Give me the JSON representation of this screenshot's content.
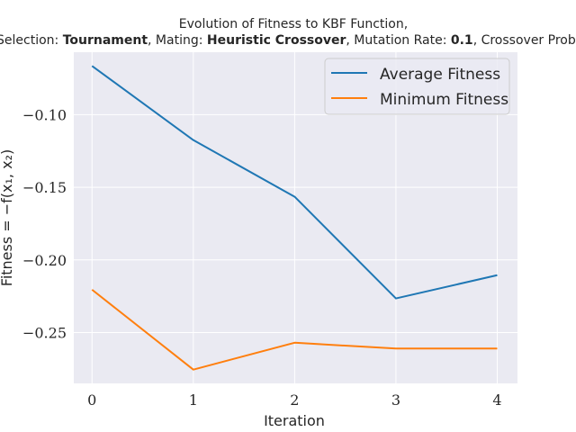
{
  "chart_data": {
    "type": "line",
    "title_line1": "Evolution of Fitness to KBF Function,",
    "title_line2": {
      "p1": "Selection: ",
      "b1": "Tournament",
      "p2": ", Mating: ",
      "b2": "Heuristic Crossover",
      "p3": ", Mutation Rate: ",
      "b3": "0.1",
      "p4": ", Crossover Prob:"
    },
    "xlabel": "Iteration",
    "ylabel": "Fitness = −f(x₁, x₂)",
    "x": [
      0,
      1,
      2,
      3,
      4
    ],
    "xticks": [
      "0",
      "1",
      "2",
      "3",
      "4"
    ],
    "yticks": [
      {
        "value": -0.1,
        "label": "−0.10"
      },
      {
        "value": -0.15,
        "label": "−0.15"
      },
      {
        "value": -0.2,
        "label": "−0.20"
      },
      {
        "value": -0.25,
        "label": "−0.25"
      }
    ],
    "xlim": [
      -0.18,
      4.2
    ],
    "ylim": [
      -0.285,
      -0.057
    ],
    "grid": true,
    "legend_position": "top-right",
    "series": [
      {
        "name": "Average Fitness",
        "color": "#1f77b4",
        "values": [
          -0.0665,
          -0.1175,
          -0.1565,
          -0.2265,
          -0.2105
        ]
      },
      {
        "name": "Minimum Fitness",
        "color": "#ff7f0e",
        "values": [
          -0.2205,
          -0.2755,
          -0.257,
          -0.261,
          -0.261
        ]
      }
    ],
    "colors": {
      "plot_bg": "#eaeaf2",
      "grid": "#ffffff",
      "text": "#262626"
    }
  }
}
